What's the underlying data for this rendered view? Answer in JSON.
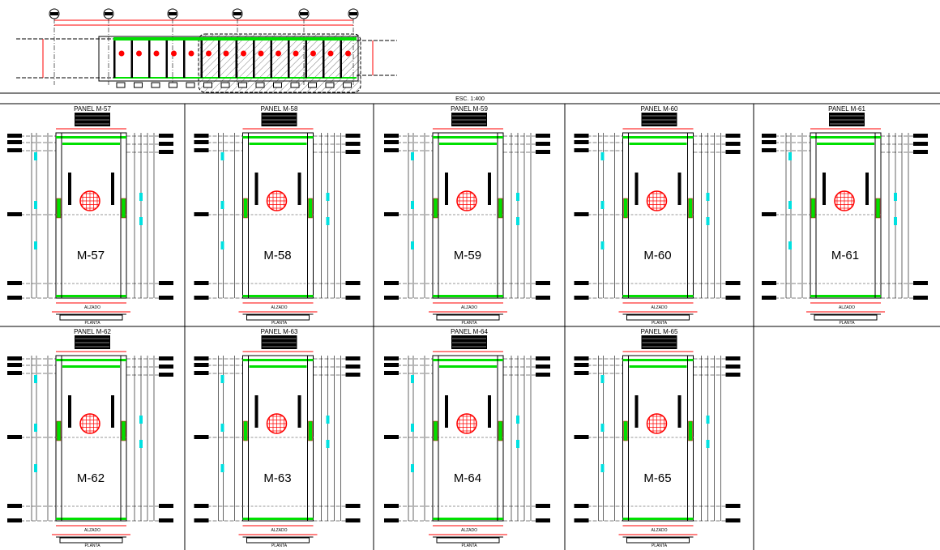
{
  "scale_label": "ESC. 1:400",
  "colors": {
    "slab": "#00e000",
    "dimension": "#ff0000",
    "dim_text": "#00e0e0",
    "outline": "#000000",
    "accent": "#ffff00"
  },
  "plan": {
    "axis_count": 6,
    "panel_count": 14
  },
  "panels": [
    {
      "title": "PANEL M-57",
      "label": "M-57",
      "elevation_label": "ALZADO",
      "plan_label": "PLANTA"
    },
    {
      "title": "PANEL M-58",
      "label": "M-58",
      "elevation_label": "ALZADO",
      "plan_label": "PLANTA"
    },
    {
      "title": "PANEL M-59",
      "label": "M-59",
      "elevation_label": "ALZADO",
      "plan_label": "PLANTA"
    },
    {
      "title": "PANEL M-60",
      "label": "M-60",
      "elevation_label": "ALZADO",
      "plan_label": "PLANTA"
    },
    {
      "title": "PANEL M-61",
      "label": "M-61",
      "elevation_label": "ALZADO",
      "plan_label": "PLANTA"
    },
    {
      "title": "PANEL M-62",
      "label": "M-62",
      "elevation_label": "ALZADO",
      "plan_label": "PLANTA"
    },
    {
      "title": "PANEL M-63",
      "label": "M-63",
      "elevation_label": "ALZADO",
      "plan_label": "PLANTA"
    },
    {
      "title": "PANEL M-64",
      "label": "M-64",
      "elevation_label": "ALZADO",
      "plan_label": "PLANTA"
    },
    {
      "title": "PANEL M-65",
      "label": "M-65",
      "elevation_label": "ALZADO",
      "plan_label": "PLANTA"
    }
  ]
}
